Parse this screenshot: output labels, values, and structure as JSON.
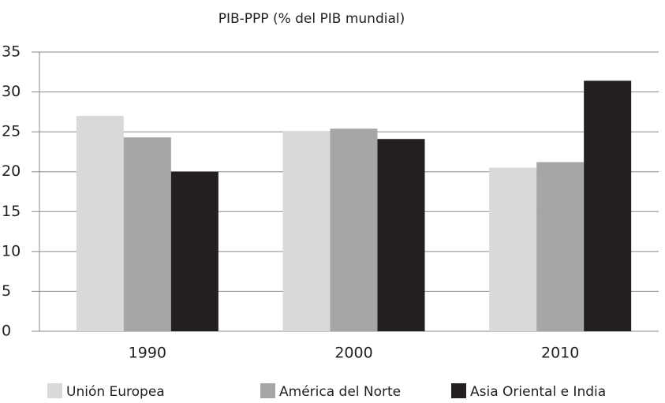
{
  "chart_data": {
    "type": "bar",
    "title": "PIB-PPP (% del PIB mundial)",
    "categories": [
      "1990",
      "2000",
      "2010"
    ],
    "series": [
      {
        "name": "Unión Europea",
        "color": "#d9d9d9",
        "values": [
          27.0,
          25.1,
          20.5
        ]
      },
      {
        "name": "América del Norte",
        "color": "#a6a6a6",
        "values": [
          24.3,
          25.4,
          21.2
        ]
      },
      {
        "name": "Asia Oriental e India",
        "color": "#231f20",
        "values": [
          20.0,
          24.1,
          31.4
        ]
      }
    ],
    "ylim": [
      0,
      35
    ],
    "yticks": [
      0,
      5,
      10,
      15,
      20,
      25,
      30,
      35
    ],
    "grid": true,
    "legend": "bottom"
  }
}
